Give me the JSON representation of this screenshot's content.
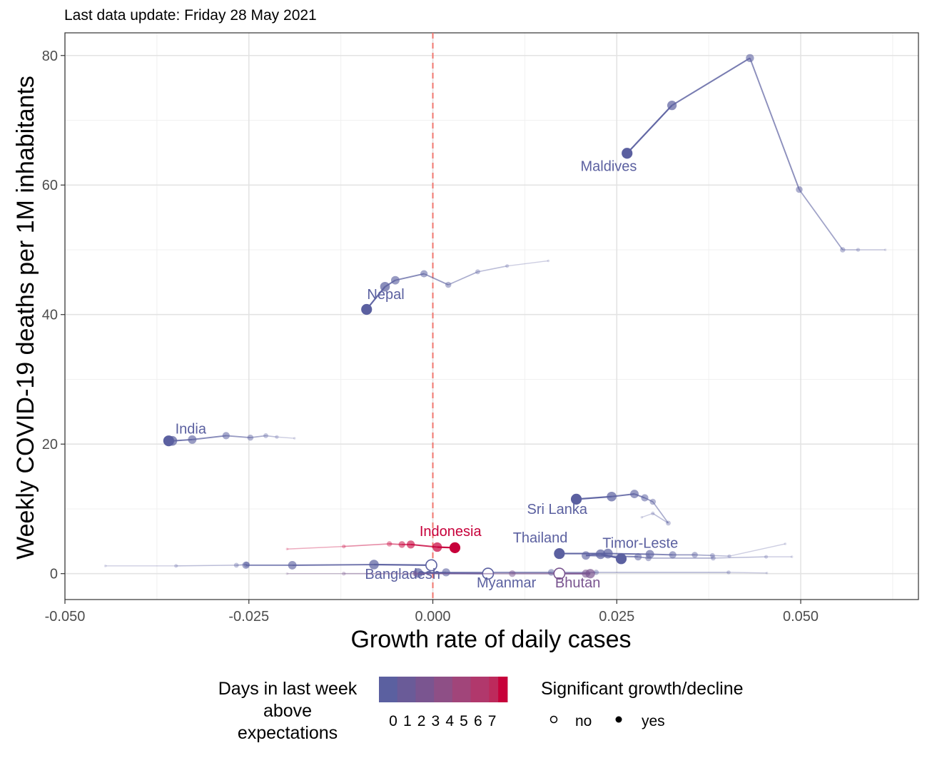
{
  "chart_data": {
    "type": "scatter",
    "subtitle": "Last data update: Friday 28 May 2021",
    "xlabel": "Growth rate of daily cases",
    "ylabel": "Weekly COVID-19 deaths per 1M inhabitants",
    "xlim": [
      -0.05,
      0.066
    ],
    "ylim": [
      -4,
      83.5
    ],
    "x_ticks": [
      -0.05,
      -0.025,
      0.0,
      0.025,
      0.05
    ],
    "x_tick_labels": [
      "-0.050",
      "-0.025",
      "0.000",
      "0.025",
      "0.050"
    ],
    "y_ticks": [
      0,
      20,
      40,
      60,
      80
    ],
    "y_tick_labels": [
      "0",
      "20",
      "40",
      "60",
      "80"
    ],
    "reference_line_x": 0.0,
    "grid": true,
    "legend": {
      "placement": "bottom",
      "color_title": "Days in last week above expectations",
      "color_title_lines": [
        "Days in last week",
        "above",
        "expectations"
      ],
      "color_labels": [
        "0",
        "1",
        "2",
        "3",
        "4",
        "5",
        "6",
        "7"
      ],
      "color_stops": [
        "#5b60a0",
        "#6a5b98",
        "#7a5590",
        "#8e4f86",
        "#a1457a",
        "#b1386c",
        "#bd2a5c",
        "#c7003a"
      ],
      "shape_title": "Significant growth/decline",
      "shape_labels": [
        "no",
        "yes"
      ]
    },
    "series": [
      {
        "name": "Maldives",
        "days_above": 0,
        "significant": true,
        "points": [
          [
            0.0615,
            50.0
          ],
          [
            0.0578,
            50.0
          ],
          [
            0.0557,
            50.0
          ],
          [
            0.0498,
            59.3
          ],
          [
            0.0431,
            79.6
          ],
          [
            0.0325,
            72.3
          ],
          [
            0.0264,
            64.9
          ]
        ],
        "label_pos": [
          0.0239,
          62.2
        ]
      },
      {
        "name": "Nepal",
        "days_above": 0,
        "significant": true,
        "points": [
          [
            0.0157,
            48.3
          ],
          [
            0.0101,
            47.5
          ],
          [
            0.0061,
            46.6
          ],
          [
            0.0021,
            44.6
          ],
          [
            -0.0012,
            46.3
          ],
          [
            -0.0051,
            45.3
          ],
          [
            -0.0065,
            44.3
          ],
          [
            -0.009,
            40.8
          ]
        ],
        "label_pos": [
          -0.0064,
          42.4
        ]
      },
      {
        "name": "India",
        "days_above": 0,
        "significant": true,
        "points": [
          [
            -0.0188,
            20.9
          ],
          [
            -0.0212,
            21.1
          ],
          [
            -0.0227,
            21.3
          ],
          [
            -0.0248,
            21.0
          ],
          [
            -0.0281,
            21.3
          ],
          [
            -0.0327,
            20.7
          ],
          [
            -0.0354,
            20.5
          ],
          [
            -0.0359,
            20.5
          ]
        ],
        "label_pos": [
          -0.0329,
          21.6
        ]
      },
      {
        "name": "Sri Lanka",
        "days_above": 0,
        "significant": true,
        "points": [
          [
            0.0284,
            8.7
          ],
          [
            0.0299,
            9.3
          ],
          [
            0.032,
            7.8
          ],
          [
            0.0299,
            11.1
          ],
          [
            0.0288,
            11.7
          ],
          [
            0.0274,
            12.3
          ],
          [
            0.0243,
            11.9
          ],
          [
            0.0195,
            11.5
          ]
        ],
        "label_pos": [
          0.0169,
          9.2
        ]
      },
      {
        "name": "Indonesia",
        "days_above": 7,
        "significant": true,
        "points": [
          [
            -0.0198,
            3.8
          ],
          [
            -0.0121,
            4.2
          ],
          [
            -0.0059,
            4.6
          ],
          [
            -0.0042,
            4.5
          ],
          [
            -0.003,
            4.5
          ],
          [
            0.0006,
            4.1
          ],
          [
            0.003,
            4.0
          ]
        ],
        "label_pos": [
          0.0024,
          5.8
        ]
      },
      {
        "name": "Thailand",
        "days_above": 0,
        "significant": true,
        "points": [
          [
            0.0479,
            4.6
          ],
          [
            0.0403,
            2.7
          ],
          [
            0.038,
            2.8
          ],
          [
            0.0356,
            2.9
          ],
          [
            0.0326,
            2.9
          ],
          [
            0.0295,
            3.0
          ],
          [
            0.0238,
            3.1
          ],
          [
            0.0172,
            3.1
          ]
        ],
        "label_pos": [
          0.0146,
          4.8
        ]
      },
      {
        "name": "Timor-Leste",
        "days_above": 0,
        "significant": true,
        "points": [
          [
            0.0488,
            2.6
          ],
          [
            0.0453,
            2.6
          ],
          [
            0.0381,
            2.4
          ],
          [
            0.0293,
            2.4
          ],
          [
            0.0279,
            2.6
          ],
          [
            0.0208,
            2.8
          ],
          [
            0.0228,
            3.0
          ],
          [
            0.0256,
            2.3
          ]
        ],
        "label_pos": [
          0.0282,
          4.0
        ]
      },
      {
        "name": "Bangladesh",
        "days_above": 0,
        "significant": false,
        "points": [
          [
            -0.0445,
            1.2
          ],
          [
            -0.0349,
            1.2
          ],
          [
            -0.0267,
            1.3
          ],
          [
            -0.0253,
            1.4
          ],
          [
            -0.0254,
            1.3
          ],
          [
            -0.0191,
            1.3
          ],
          [
            -0.008,
            1.4
          ],
          [
            -0.0002,
            1.3
          ]
        ],
        "label_pos": [
          -0.0041,
          -0.8
        ]
      },
      {
        "name": "Myanmar",
        "days_above": 0,
        "significant": false,
        "points": [
          [
            0.0454,
            0.1
          ],
          [
            0.0402,
            0.2
          ],
          [
            0.0222,
            0.2
          ],
          [
            0.0161,
            0.2
          ],
          [
            0.0018,
            0.2
          ],
          [
            -0.002,
            0.1
          ],
          [
            0.0075,
            0.0
          ]
        ],
        "label_pos": [
          0.01,
          -2.1
        ]
      },
      {
        "name": "Bhutan",
        "days_above": 2,
        "significant": false,
        "points": [
          [
            -0.0198,
            0.0
          ],
          [
            -0.0121,
            0.0
          ],
          [
            -0.0024,
            0.0
          ],
          [
            0.0108,
            0.0
          ],
          [
            0.0208,
            0.0
          ],
          [
            0.0214,
            0.0
          ],
          [
            0.0172,
            0.0
          ]
        ],
        "label_pos": [
          0.0197,
          -2.1
        ]
      }
    ]
  }
}
